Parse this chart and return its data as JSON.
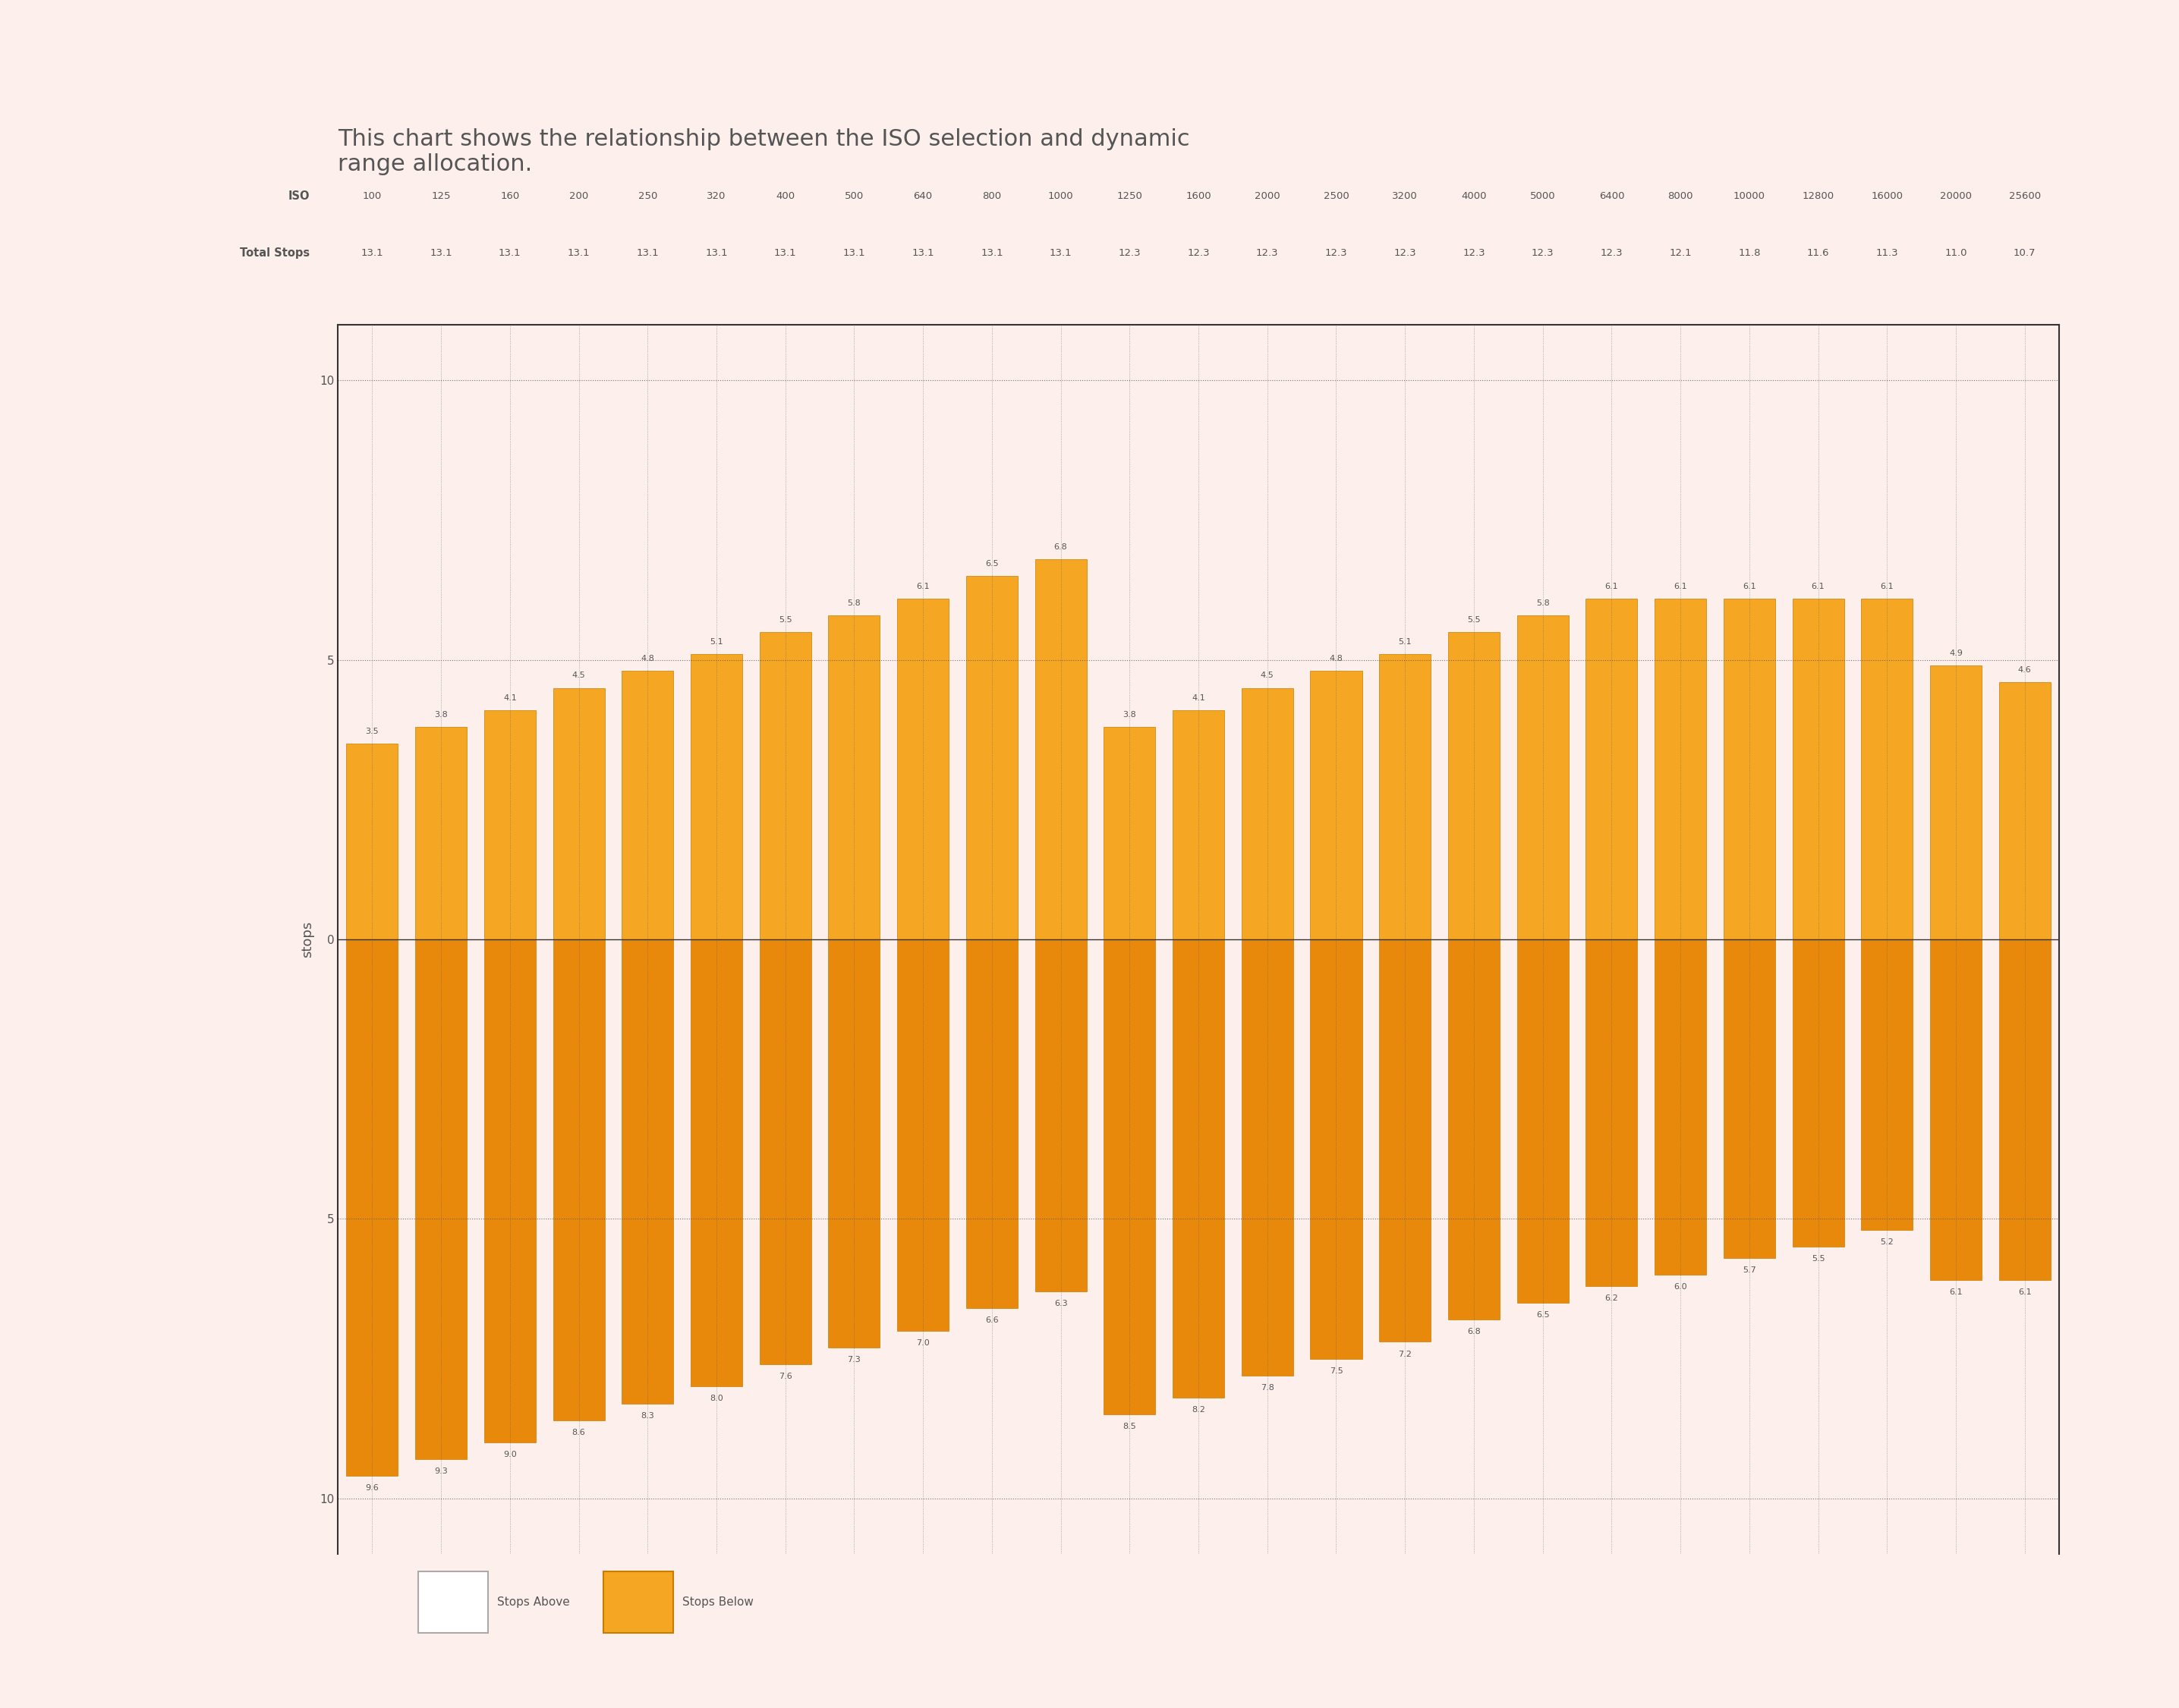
{
  "title": "This chart shows the relationship between the ISO selection and dynamic\nrange allocation.",
  "background_color": "#fdf0ec",
  "plot_bg_color": "#fdf0ec",
  "iso_values": [
    "100",
    "125",
    "160",
    "200",
    "250",
    "320",
    "400",
    "500",
    "640",
    "800",
    "1000",
    "1250",
    "1600",
    "2000",
    "2500",
    "3200",
    "4000",
    "5000",
    "6400",
    "8000",
    "10000",
    "12800",
    "16000",
    "20000",
    "25600"
  ],
  "total_stops": [
    "13.1",
    "13.1",
    "13.1",
    "13.1",
    "13.1",
    "13.1",
    "13.1",
    "13.1",
    "13.1",
    "13.1",
    "13.1",
    "12.3",
    "12.3",
    "12.3",
    "12.3",
    "12.3",
    "12.3",
    "12.3",
    "12.3",
    "12.1",
    "11.8",
    "11.6",
    "11.3",
    "11.0",
    "10.7"
  ],
  "stops_above": [
    3.5,
    3.8,
    4.1,
    4.5,
    4.8,
    5.1,
    5.5,
    5.8,
    6.1,
    6.5,
    6.8,
    3.8,
    4.1,
    4.5,
    4.8,
    5.1,
    5.5,
    5.8,
    6.1,
    6.1,
    6.1,
    6.1,
    6.1,
    4.9,
    4.6
  ],
  "stops_below": [
    9.6,
    9.3,
    9.0,
    8.6,
    8.3,
    8.0,
    7.6,
    7.3,
    7.0,
    6.6,
    6.3,
    8.5,
    8.2,
    7.8,
    7.5,
    7.2,
    6.8,
    6.5,
    6.2,
    6.0,
    5.7,
    5.5,
    5.2,
    6.1,
    6.1
  ],
  "bar_color_above": "#f5a623",
  "bar_color_below": "#e8890c",
  "bar_edge_color": "#c97d00",
  "legend_above_color": "#ffffff",
  "legend_below_color": "#f5a623",
  "ylim_min": -11,
  "ylim_max": 11,
  "yticks": [
    -10,
    -5,
    0,
    5,
    10
  ],
  "ylabel": "stops",
  "grid_color": "#555555",
  "text_color": "#555555",
  "axis_line_color": "#333333"
}
